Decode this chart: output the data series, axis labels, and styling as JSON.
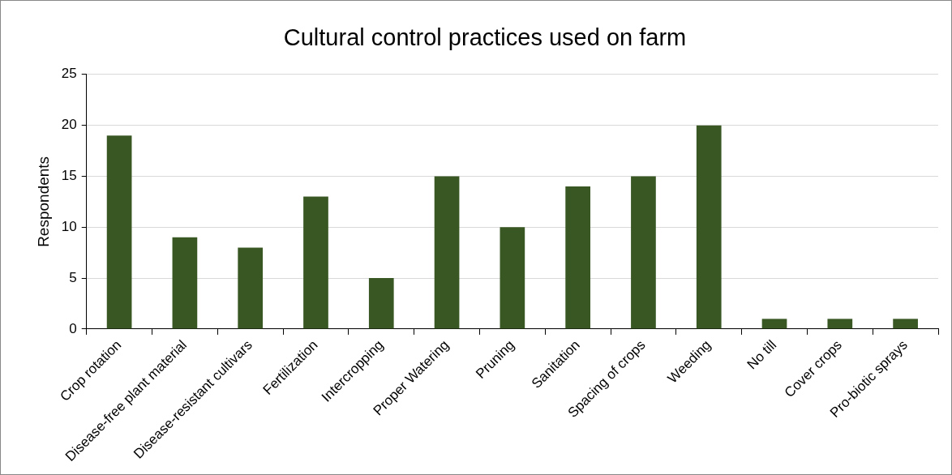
{
  "chart_data": {
    "type": "bar",
    "title": "Cultural control practices used on farm",
    "ylabel": "Respondents",
    "categories": [
      "Crop rotation",
      "Disease-free plant material",
      "Disease-resistant cultivars",
      "Fertilization",
      "Intercropping",
      "Proper Watering",
      "Pruning",
      "Sanitation",
      "Spacing of crops",
      "Weeding",
      "No till",
      "Cover crops",
      "Pro-biotic sprays"
    ],
    "values": [
      19,
      9,
      8,
      13,
      5,
      15,
      10,
      14,
      15,
      20,
      1,
      1,
      1
    ],
    "color": "#385723",
    "ylim": [
      0,
      25
    ],
    "yticks": [
      0,
      5,
      10,
      15,
      20,
      25
    ],
    "grid": "y",
    "legend": false
  }
}
